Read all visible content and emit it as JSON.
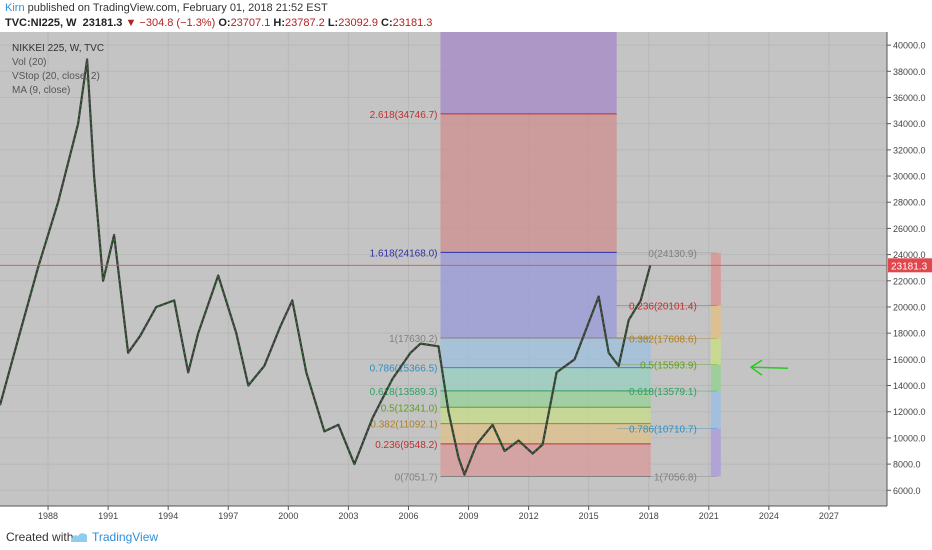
{
  "header": {
    "author": "Kirn",
    "published_text": "published on TradingView.com, February 01, 2018 21:52 EST",
    "symbol": "TVC:NI225, W",
    "last": "23181.3",
    "change_arrow": "▼",
    "change": "−304.8 (−1.3%)",
    "o_label": "O:",
    "o": "23707.1",
    "h_label": "H:",
    "h": "23787.2",
    "l_label": "L:",
    "l": "23092.9",
    "c_label": "C:",
    "c": "23181.3"
  },
  "legend": {
    "title": "NIKKEI 225, W, TVC",
    "vol": "Vol (20)",
    "vstop": "VStop (20, close, 2)",
    "ma": "MA (9, close)"
  },
  "footer": {
    "created": "Created with",
    "brand": "TradingView"
  },
  "colors": {
    "background": "#c4c4c4",
    "price_line": "#e05050",
    "price_label_bg": "#e0474c",
    "arrow": "#22cc22",
    "extension_band": "#a59ac0"
  },
  "chart_data": {
    "type": "line",
    "symbol": "NIKKEI 225",
    "y_ticks": [
      6000,
      8000,
      10000,
      12000,
      14000,
      16000,
      18000,
      20000,
      22000,
      24000,
      26000,
      28000,
      30000,
      32000,
      34000,
      36000,
      38000,
      40000
    ],
    "ylim": [
      4800,
      41000
    ],
    "x_ticks": [
      "1988",
      "1991",
      "1994",
      "1997",
      "2000",
      "2003",
      "2006",
      "2009",
      "2012",
      "2015",
      "2018",
      "2021",
      "2024",
      "2027"
    ],
    "xlim": [
      1985.6,
      2029.9
    ],
    "last_price_label": "23181.3",
    "last_price": 23181.3,
    "price_series": {
      "x": [
        1985.6,
        1986.5,
        1987.5,
        1988.5,
        1989.5,
        1989.95,
        1990.3,
        1990.75,
        1991.3,
        1992.0,
        1992.6,
        1993.4,
        1994.3,
        1995.0,
        1995.5,
        1996.5,
        1997.4,
        1998.0,
        1998.8,
        1999.6,
        2000.2,
        2000.9,
        2001.8,
        2002.5,
        2003.3,
        2004.2,
        2005.2,
        2006.1,
        2006.6,
        2007.5,
        2008.0,
        2008.5,
        2008.8,
        2009.4,
        2010.2,
        2010.8,
        2011.5,
        2012.2,
        2012.7,
        2013.4,
        2014.3,
        2015.5,
        2016.0,
        2016.5,
        2017.0,
        2017.6,
        2018.08
      ],
      "y": [
        12500,
        17500,
        23000,
        28000,
        34000,
        38900,
        30000,
        22000,
        25500,
        16500,
        17800,
        20000,
        20500,
        15000,
        18000,
        22400,
        18000,
        14000,
        15500,
        18500,
        20500,
        15000,
        10500,
        11000,
        8000,
        11500,
        14500,
        16500,
        17200,
        17000,
        12000,
        8500,
        7200,
        9500,
        11000,
        9000,
        9800,
        8800,
        9500,
        15000,
        16000,
        20800,
        16500,
        15500,
        19000,
        20500,
        23181
      ]
    },
    "fib_retracement_left": {
      "x_range": [
        2007.6,
        2018.1
      ],
      "levels": [
        {
          "label": "0(7051.7)",
          "value": 7051.7
        },
        {
          "label": "0.236(9548.2)",
          "value": 9548.2
        },
        {
          "label": "0.382(11092.1)",
          "value": 11092.1
        },
        {
          "label": "0.5(12341.0)",
          "value": 12341.0
        },
        {
          "label": "0.618(13589.3)",
          "value": 13589.3
        },
        {
          "label": "0.786(15366.5)",
          "value": 15366.5
        },
        {
          "label": "1(17630.2)",
          "value": 17630.2
        }
      ]
    },
    "fib_extension": {
      "x_range": [
        2007.6,
        2016.4
      ],
      "levels": [
        {
          "label": "1.618(24168.0)",
          "value": 24168.0
        },
        {
          "label": "2.618(34746.7)",
          "value": 34746.7
        }
      ]
    },
    "fib_retracement_right": {
      "x_range": [
        2016.4,
        2021.4
      ],
      "levels": [
        {
          "label": "0(24130.9)",
          "value": 24130.9
        },
        {
          "label": "0.236(20101.4)",
          "value": 20101.4
        },
        {
          "label": "0.382(17608.6)",
          "value": 17608.6
        },
        {
          "label": "0.5(15593.9)",
          "value": 15593.9
        },
        {
          "label": "0.618(13579.1)",
          "value": 13579.1
        },
        {
          "label": "0.786(10710.7)",
          "value": 10710.7
        },
        {
          "label": "1(7056.8)",
          "value": 7056.8
        }
      ]
    }
  }
}
